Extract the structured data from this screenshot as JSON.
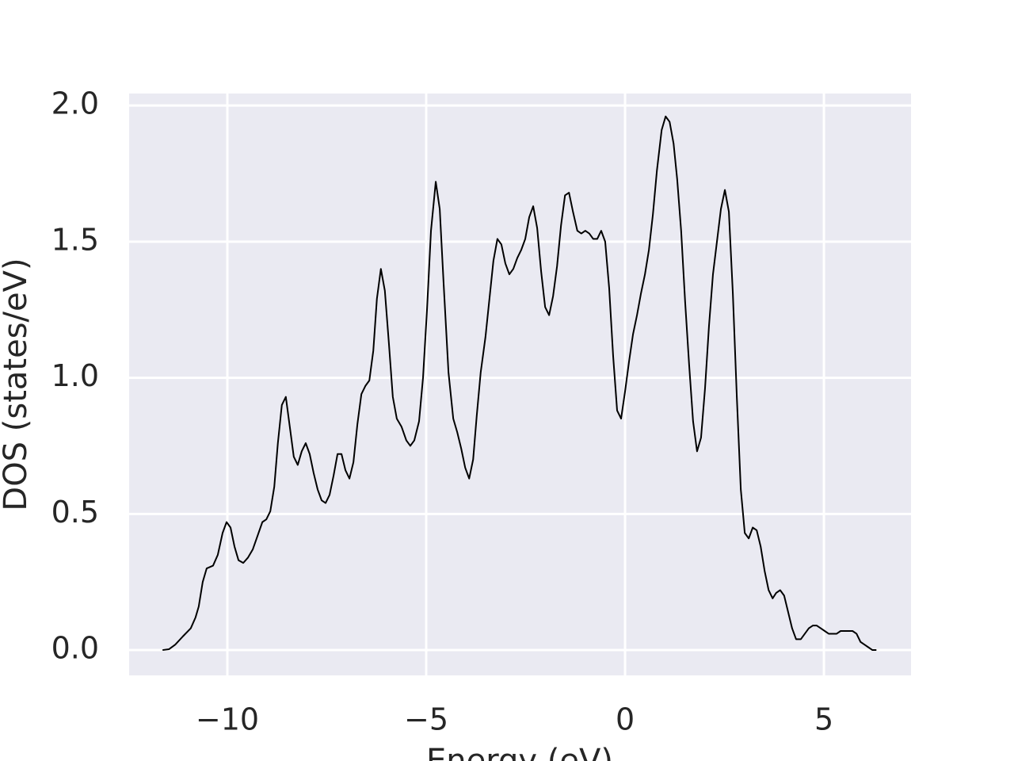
{
  "chart_data": {
    "type": "line",
    "x_label": "Energy (eV)",
    "y_label": "DOS (states/eV)",
    "color": "#000000",
    "grid": true,
    "xlim": [
      -12.47,
      7.19
    ],
    "ylim": [
      -0.093,
      2.044
    ],
    "xticks": [
      {
        "value": -10,
        "label": "−10"
      },
      {
        "value": -5,
        "label": "−5"
      },
      0,
      5
    ],
    "yticks": [
      {
        "value": 0,
        "label": "0.0"
      },
      0.5,
      {
        "value": 1,
        "label": "1.0"
      },
      1.5,
      {
        "value": 2,
        "label": "2.0"
      }
    ],
    "x": [
      -11.63,
      -11.47,
      -11.31,
      -11.12,
      -10.92,
      -10.8,
      -10.72,
      -10.62,
      -10.52,
      -10.36,
      -10.24,
      -10.12,
      -10.02,
      -9.92,
      -9.82,
      -9.72,
      -9.6,
      -9.48,
      -9.36,
      -9.24,
      -9.12,
      -9.02,
      -8.92,
      -8.82,
      -8.73,
      -8.63,
      -8.53,
      -8.43,
      -8.33,
      -8.23,
      -8.13,
      -8.03,
      -7.93,
      -7.83,
      -7.73,
      -7.63,
      -7.53,
      -7.43,
      -7.33,
      -7.23,
      -7.13,
      -7.03,
      -6.93,
      -6.83,
      -6.73,
      -6.63,
      -6.53,
      -6.43,
      -6.33,
      -6.24,
      -6.14,
      -6.04,
      -5.94,
      -5.84,
      -5.74,
      -5.62,
      -5.5,
      -5.4,
      -5.3,
      -5.18,
      -5.08,
      -4.98,
      -4.88,
      -4.76,
      -4.66,
      -4.56,
      -4.44,
      -4.32,
      -4.22,
      -4.12,
      -4.02,
      -3.92,
      -3.82,
      -3.73,
      -3.63,
      -3.51,
      -3.41,
      -3.31,
      -3.21,
      -3.11,
      -3.01,
      -2.91,
      -2.81,
      -2.71,
      -2.61,
      -2.51,
      -2.41,
      -2.31,
      -2.21,
      -2.11,
      -2.01,
      -1.91,
      -1.81,
      -1.71,
      -1.61,
      -1.51,
      -1.41,
      -1.31,
      -1.2,
      -1.1,
      -1.0,
      -0.9,
      -0.8,
      -0.7,
      -0.6,
      -0.5,
      -0.4,
      -0.3,
      -0.2,
      -0.1,
      0.0,
      0.1,
      0.2,
      0.3,
      0.4,
      0.5,
      0.6,
      0.7,
      0.8,
      0.92,
      1.02,
      1.12,
      1.22,
      1.31,
      1.41,
      1.51,
      1.61,
      1.71,
      1.81,
      1.91,
      2.01,
      2.11,
      2.21,
      2.31,
      2.41,
      2.51,
      2.61,
      2.71,
      2.81,
      2.91,
      3.01,
      3.11,
      3.21,
      3.31,
      3.41,
      3.51,
      3.61,
      3.71,
      3.8,
      3.9,
      4.0,
      4.1,
      4.2,
      4.3,
      4.42,
      4.52,
      4.62,
      4.72,
      4.82,
      4.92,
      5.02,
      5.12,
      5.22,
      5.32,
      5.42,
      5.52,
      5.62,
      5.72,
      5.82,
      5.92,
      6.02,
      6.12,
      6.22,
      6.32
    ],
    "values": [
      0.0,
      0.003,
      0.02,
      0.05,
      0.08,
      0.12,
      0.16,
      0.25,
      0.3,
      0.31,
      0.35,
      0.43,
      0.47,
      0.45,
      0.38,
      0.33,
      0.32,
      0.34,
      0.37,
      0.42,
      0.47,
      0.48,
      0.51,
      0.6,
      0.76,
      0.9,
      0.93,
      0.82,
      0.71,
      0.68,
      0.73,
      0.76,
      0.72,
      0.65,
      0.59,
      0.55,
      0.54,
      0.57,
      0.64,
      0.72,
      0.72,
      0.66,
      0.63,
      0.69,
      0.83,
      0.94,
      0.97,
      0.99,
      1.1,
      1.29,
      1.4,
      1.32,
      1.13,
      0.93,
      0.85,
      0.82,
      0.77,
      0.75,
      0.77,
      0.84,
      1.0,
      1.25,
      1.54,
      1.72,
      1.62,
      1.34,
      1.02,
      0.85,
      0.8,
      0.74,
      0.67,
      0.63,
      0.7,
      0.86,
      1.02,
      1.15,
      1.29,
      1.43,
      1.51,
      1.49,
      1.42,
      1.38,
      1.4,
      1.44,
      1.47,
      1.51,
      1.59,
      1.63,
      1.55,
      1.39,
      1.26,
      1.23,
      1.3,
      1.41,
      1.56,
      1.67,
      1.68,
      1.61,
      1.54,
      1.53,
      1.54,
      1.53,
      1.51,
      1.51,
      1.54,
      1.5,
      1.33,
      1.08,
      0.88,
      0.85,
      0.95,
      1.06,
      1.16,
      1.23,
      1.31,
      1.38,
      1.47,
      1.6,
      1.76,
      1.91,
      1.96,
      1.94,
      1.86,
      1.73,
      1.54,
      1.28,
      1.05,
      0.84,
      0.73,
      0.78,
      0.96,
      1.19,
      1.38,
      1.5,
      1.62,
      1.69,
      1.61,
      1.31,
      0.93,
      0.59,
      0.43,
      0.41,
      0.45,
      0.44,
      0.38,
      0.29,
      0.22,
      0.19,
      0.21,
      0.22,
      0.2,
      0.14,
      0.08,
      0.04,
      0.04,
      0.06,
      0.08,
      0.09,
      0.09,
      0.08,
      0.07,
      0.06,
      0.06,
      0.06,
      0.07,
      0.07,
      0.07,
      0.07,
      0.06,
      0.03,
      0.02,
      0.01,
      0.0,
      0.0
    ]
  }
}
